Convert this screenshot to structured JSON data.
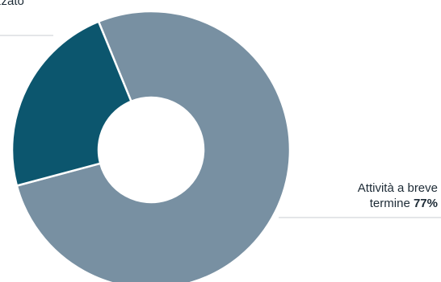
{
  "chart_data": {
    "type": "pie",
    "donut": true,
    "categories": [
      "Attività a breve termine",
      "zzato"
    ],
    "values": [
      77,
      23
    ],
    "series": [
      {
        "values": [
          77,
          23
        ],
        "colors": [
          "#7890a2",
          "#0c566e"
        ]
      }
    ],
    "labels": {
      "short_term": {
        "line1": "Attività a breve",
        "line2": "termine",
        "value": "77%"
      },
      "other": {
        "line1": "zzato"
      }
    },
    "legend": "callout labels",
    "slice_border": "#ffffff",
    "leader_color": "#c8cdd2"
  }
}
